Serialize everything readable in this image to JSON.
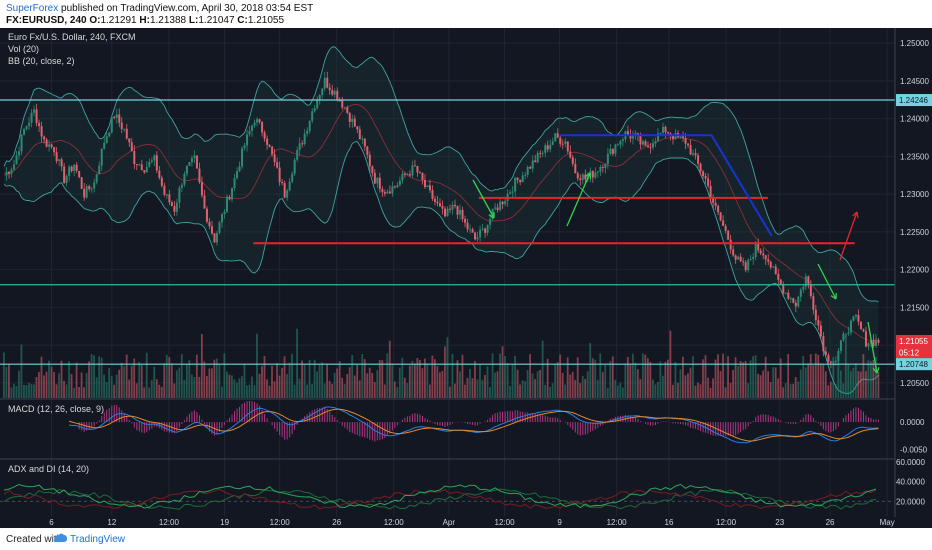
{
  "header": {
    "publisher": "SuperForex",
    "published_text": "published on TradingView.com, April 30, 2018 03:54 EST",
    "symbol_line": "FX:EURUSD, 240",
    "o_label": "O:",
    "o": "1.21291",
    "h_label": "H:",
    "h": "1.21388",
    "l_label": "L:",
    "l": "1.21047",
    "c_label": "C:",
    "c": "1.21055"
  },
  "legend": {
    "instrument": "Euro Fx/U.S. Dollar, 240, FXCM",
    "vol": "Vol (20)",
    "bb": "BB (20, close, 2)",
    "macd": "MACD (12, 26, close, 9)",
    "adx": "ADX and DI (14, 20)"
  },
  "footer": {
    "created_with": "Created with",
    "brand": "TradingView"
  },
  "colors": {
    "background": "#131722",
    "grid": "#1f2533",
    "up": "#2e8b72",
    "down": "#e0606e",
    "bb_band": "#3ea3a0",
    "bb_mid": "#8b2d3a",
    "support_line": "#e8232d",
    "blue_line": "#1a33d6",
    "teal_line": "#33b89a",
    "cyan_line": "#74d3e0",
    "arrow_green": "#38d14f",
    "arrow_red": "#e8232d",
    "macd_line": "#2a7ee0",
    "signal_line": "#e2892b",
    "macd_hist": "#b23584",
    "adx_line": "#2ba55c",
    "di_plus": "#1e6b3c",
    "di_minus": "#7a1c23"
  },
  "chart_data": {
    "type": "line",
    "subtype": "candlestick",
    "price_axis": {
      "ticks": [
        "1.25000",
        "1.24500",
        "1.24000",
        "1.23500",
        "1.23000",
        "1.22500",
        "1.22000",
        "1.21500",
        "1.21000",
        "1.20500"
      ],
      "range": [
        1.203,
        1.252
      ]
    },
    "price_labels": [
      {
        "text": "1.24246",
        "value": 1.24246,
        "kind": "cyan"
      },
      {
        "text": "1.21055",
        "value": 1.21055,
        "kind": "red"
      },
      {
        "text": "05:12",
        "value": 1.209,
        "kind": "red"
      },
      {
        "text": "1.20748",
        "value": 1.20748,
        "kind": "cyan"
      }
    ],
    "time_axis": {
      "labels": [
        "6",
        "12",
        "12:00",
        "19",
        "12:00",
        "26",
        "12:00",
        "Apr",
        "12:00",
        "9",
        "12:00",
        "16",
        "12:00",
        "23",
        "26",
        "May"
      ],
      "positions": [
        0.02,
        0.11,
        0.195,
        0.278,
        0.36,
        0.445,
        0.53,
        0.612,
        0.695,
        0.777,
        0.862,
        0.94,
        1.025,
        1.105,
        1.18,
        1.265
      ]
    },
    "close_points": [
      [
        0,
        1.2325
      ],
      [
        4,
        1.234
      ],
      [
        8,
        1.2385
      ],
      [
        12,
        1.241
      ],
      [
        16,
        1.237
      ],
      [
        20,
        1.236
      ],
      [
        24,
        1.232
      ],
      [
        28,
        1.234
      ],
      [
        32,
        1.23
      ],
      [
        36,
        1.2315
      ],
      [
        40,
        1.237
      ],
      [
        44,
        1.2405
      ],
      [
        48,
        1.2385
      ],
      [
        52,
        1.2345
      ],
      [
        56,
        1.2335
      ],
      [
        60,
        1.2345
      ],
      [
        64,
        1.23
      ],
      [
        68,
        1.228
      ],
      [
        72,
        1.233
      ],
      [
        76,
        1.2345
      ],
      [
        80,
        1.228
      ],
      [
        84,
        1.224
      ],
      [
        88,
        1.228
      ],
      [
        92,
        1.232
      ],
      [
        96,
        1.2365
      ],
      [
        100,
        1.24
      ],
      [
        104,
        1.238
      ],
      [
        108,
        1.234
      ],
      [
        112,
        1.23
      ],
      [
        116,
        1.2345
      ],
      [
        120,
        1.238
      ],
      [
        124,
        1.242
      ],
      [
        128,
        1.245
      ],
      [
        132,
        1.2435
      ],
      [
        136,
        1.2415
      ],
      [
        140,
        1.239
      ],
      [
        144,
        1.236
      ],
      [
        148,
        1.232
      ],
      [
        152,
        1.2305
      ],
      [
        156,
        1.231
      ],
      [
        160,
        1.2325
      ],
      [
        164,
        1.2335
      ],
      [
        168,
        1.231
      ],
      [
        172,
        1.229
      ],
      [
        176,
        1.227
      ],
      [
        180,
        1.2285
      ],
      [
        184,
        1.226
      ],
      [
        188,
        1.224
      ],
      [
        192,
        1.2255
      ],
      [
        196,
        1.228
      ],
      [
        200,
        1.2295
      ],
      [
        204,
        1.2315
      ],
      [
        208,
        1.233
      ],
      [
        212,
        1.2345
      ],
      [
        216,
        1.236
      ],
      [
        220,
        1.2375
      ],
      [
        224,
        1.237
      ],
      [
        228,
        1.233
      ],
      [
        232,
        1.232
      ],
      [
        236,
        1.233
      ],
      [
        240,
        1.2345
      ],
      [
        244,
        1.2365
      ],
      [
        248,
        1.238
      ],
      [
        252,
        1.2375
      ],
      [
        256,
        1.236
      ],
      [
        260,
        1.2375
      ],
      [
        264,
        1.2385
      ],
      [
        268,
        1.2375
      ],
      [
        272,
        1.237
      ],
      [
        276,
        1.2345
      ],
      [
        280,
        1.232
      ],
      [
        284,
        1.228
      ],
      [
        288,
        1.225
      ],
      [
        292,
        1.2215
      ],
      [
        296,
        1.22
      ],
      [
        300,
        1.223
      ],
      [
        304,
        1.222
      ],
      [
        308,
        1.219
      ],
      [
        312,
        1.217
      ],
      [
        316,
        1.2155
      ],
      [
        320,
        1.219
      ],
      [
        324,
        1.214
      ],
      [
        328,
        1.2085
      ],
      [
        332,
        1.208
      ],
      [
        336,
        1.212
      ],
      [
        340,
        1.2135
      ],
      [
        344,
        1.2105
      ]
    ],
    "levels": [
      {
        "name": "red-upper",
        "value": 1.2295,
        "from": 0.535,
        "to": 0.858
      },
      {
        "name": "red-lower",
        "value": 1.2235,
        "from": 0.283,
        "to": 0.955
      },
      {
        "name": "blue-top",
        "value": 1.2378,
        "from": 0.626,
        "to": 0.795
      },
      {
        "name": "teal-support",
        "value": 1.218,
        "from": 0.0,
        "to": 1.0
      },
      {
        "name": "cyan-top",
        "value": 1.24246,
        "from": 0.0,
        "to": 1.0
      },
      {
        "name": "cyan-bottom",
        "value": 1.20748,
        "from": 0.0,
        "to": 1.0
      }
    ],
    "macd_panel": {
      "ticks": [
        "0.0000",
        "-0.0050"
      ],
      "range": [
        -0.0065,
        0.004
      ]
    },
    "adx_panel": {
      "ticks": [
        "60.0000",
        "40.0000",
        "20.0000"
      ],
      "range": [
        5,
        62
      ]
    }
  }
}
